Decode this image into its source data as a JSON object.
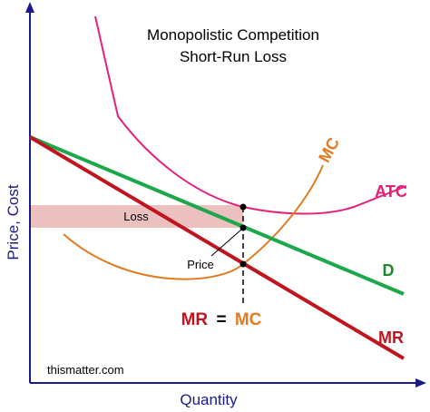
{
  "chart_data": {
    "type": "line",
    "title": "Monopolistic Competition",
    "subtitle": "Short-Run Loss",
    "xlabel": "Quantity",
    "ylabel": "Price, Cost",
    "watermark": "thismatter.com",
    "equation": {
      "left": "MR",
      "op": "=",
      "right": "MC"
    },
    "annotations": {
      "loss": "Loss",
      "price": "Price"
    },
    "series": [
      {
        "name": "MC",
        "color": "#e07b20"
      },
      {
        "name": "ATC",
        "color": "#e6207a"
      },
      {
        "name": "D",
        "color": "#1aa84a"
      },
      {
        "name": "MR",
        "color": "#c0141e"
      }
    ],
    "colors": {
      "axis": "#1a1a8c",
      "loss_fill": "#e8b0b0",
      "points": "#000000"
    },
    "grid": false
  }
}
